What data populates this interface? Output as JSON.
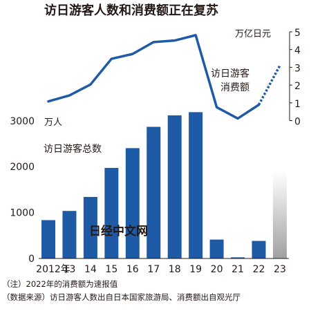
{
  "chart_data": [
    {
      "type": "line",
      "title": "访日游客人数和消费额正在复苏",
      "series": [
        {
          "name": "访日游客消费额",
          "values": [
            1.08,
            1.42,
            2.03,
            3.48,
            3.75,
            4.42,
            4.51,
            4.81,
            0.75,
            0.12,
            0.89,
            3.1
          ]
        }
      ],
      "preliminary_from_index": 10,
      "unit": "万亿日元",
      "ylim": [
        0,
        5
      ],
      "yticks": [
        "0",
        "1",
        "2",
        "3",
        "4",
        "5"
      ],
      "axis_position": "right"
    },
    {
      "type": "bar",
      "series": [
        {
          "name": "访日游客总数",
          "values": [
            836,
            1036,
            1341,
            1974,
            2404,
            2869,
            3119,
            3188,
            412,
            25,
            383,
            1900
          ]
        }
      ],
      "estimated_index": 11,
      "unit": "万人",
      "ylim": [
        0,
        3200
      ],
      "yticks": [
        "0",
        "1000",
        "2000",
        "3000"
      ],
      "axis_position": "left"
    }
  ],
  "x": {
    "categories": [
      "2012年",
      "13",
      "14",
      "15",
      "16",
      "17",
      "18",
      "19",
      "20",
      "21",
      "22",
      "23"
    ]
  },
  "notes": [
    "（注）2022年的消费额为速报值",
    "（数据来源）访日游客人数出自日本国家旅游局、消费额出自观光厅"
  ],
  "watermark": "日经中文网",
  "colors": {
    "bar": "#1f5aa6",
    "line": "#1f5aa6",
    "estimate_bar_top": "#ffffff",
    "estimate_bar_bottom": "#a0a0a0",
    "text": "#231815"
  }
}
